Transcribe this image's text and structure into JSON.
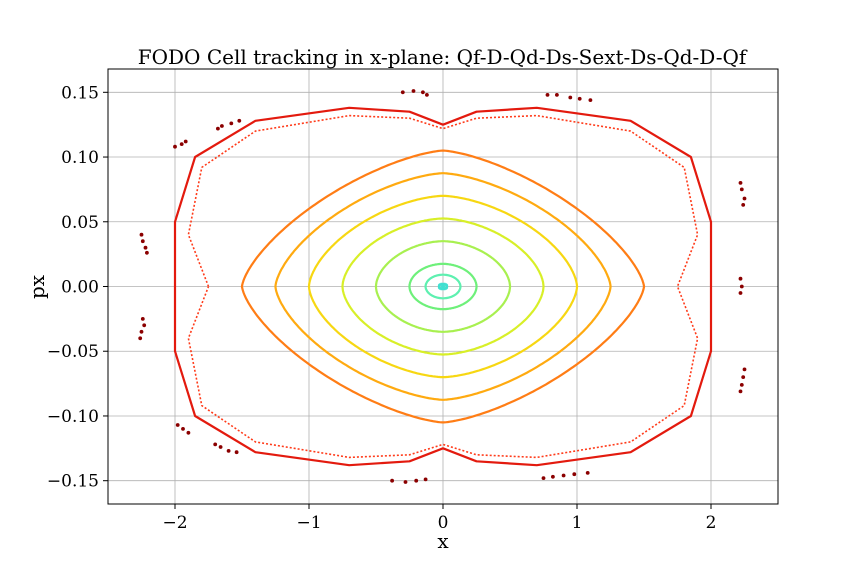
{
  "chart_data": {
    "type": "scatter",
    "title": "FODO Cell tracking in x-plane: Qf-D-Qd-Ds-Sext-Ds-Qd-D-Qf",
    "xlabel": "x",
    "ylabel": "px",
    "xlim": [
      -2.5,
      2.5
    ],
    "ylim": [
      -0.168,
      0.168
    ],
    "xticks": [
      -2,
      -1,
      0,
      1,
      2
    ],
    "xtick_labels": [
      "−2",
      "−1",
      "0",
      "1",
      "2"
    ],
    "yticks": [
      -0.15,
      -0.1,
      -0.05,
      0.0,
      0.05,
      0.1,
      0.15
    ],
    "ytick_labels": [
      "−0.15",
      "−0.10",
      "−0.05",
      "0.00",
      "0.05",
      "0.10",
      "0.15"
    ],
    "grid": true,
    "legend": "none",
    "orbits": [
      {
        "amplitude_x": 0.03,
        "color": "#40e0d0"
      },
      {
        "amplitude_x": 0.13,
        "color": "#5ef0b0"
      },
      {
        "amplitude_x": 0.25,
        "color": "#6ef07a"
      },
      {
        "amplitude_x": 0.5,
        "color": "#a8f050"
      },
      {
        "amplitude_x": 0.75,
        "color": "#d8ef28"
      },
      {
        "amplitude_x": 1.0,
        "color": "#f7d712"
      },
      {
        "amplitude_x": 1.25,
        "color": "#ffaa10"
      },
      {
        "amplitude_x": 1.5,
        "color": "#ff7d15"
      }
    ],
    "separatrix": {
      "color": "#e31a0e",
      "outer": [
        [
          -2.0,
          0.0
        ],
        [
          -2.0,
          0.05
        ],
        [
          -1.85,
          0.1
        ],
        [
          -1.4,
          0.128
        ],
        [
          -0.7,
          0.138
        ],
        [
          -0.25,
          0.135
        ],
        [
          0.0,
          0.125
        ],
        [
          0.25,
          0.135
        ],
        [
          0.7,
          0.138
        ],
        [
          1.4,
          0.128
        ],
        [
          1.85,
          0.1
        ],
        [
          2.0,
          0.05
        ],
        [
          2.0,
          0.0
        ],
        [
          2.0,
          -0.05
        ],
        [
          1.85,
          -0.1
        ],
        [
          1.4,
          -0.128
        ],
        [
          0.7,
          -0.138
        ],
        [
          0.25,
          -0.135
        ],
        [
          0.0,
          -0.125
        ],
        [
          -0.25,
          -0.135
        ],
        [
          -0.7,
          -0.138
        ],
        [
          -1.4,
          -0.128
        ],
        [
          -1.85,
          -0.1
        ],
        [
          -2.0,
          -0.05
        ]
      ],
      "inner": [
        [
          -1.75,
          0.0
        ],
        [
          -1.9,
          0.04
        ],
        [
          -1.8,
          0.092
        ],
        [
          -1.4,
          0.12
        ],
        [
          -0.7,
          0.132
        ],
        [
          -0.25,
          0.13
        ],
        [
          0.0,
          0.122
        ],
        [
          0.25,
          0.13
        ],
        [
          0.7,
          0.132
        ],
        [
          1.4,
          0.12
        ],
        [
          1.8,
          0.092
        ],
        [
          1.9,
          0.04
        ],
        [
          1.75,
          0.0
        ],
        [
          1.9,
          -0.04
        ],
        [
          1.8,
          -0.092
        ],
        [
          1.4,
          -0.12
        ],
        [
          0.7,
          -0.132
        ],
        [
          0.25,
          -0.13
        ],
        [
          0.0,
          -0.122
        ],
        [
          -0.25,
          -0.13
        ],
        [
          -0.7,
          -0.132
        ],
        [
          -1.4,
          -0.12
        ],
        [
          -1.8,
          -0.092
        ],
        [
          -1.9,
          -0.04
        ]
      ]
    },
    "islands": {
      "color": "#8b0000",
      "points": [
        [
          -0.3,
          0.15
        ],
        [
          -0.22,
          0.151
        ],
        [
          -0.15,
          0.15
        ],
        [
          -0.12,
          0.148
        ],
        [
          0.78,
          0.148
        ],
        [
          0.85,
          0.148
        ],
        [
          0.95,
          0.146
        ],
        [
          1.02,
          0.145
        ],
        [
          1.1,
          0.144
        ],
        [
          -1.68,
          0.122
        ],
        [
          -1.65,
          0.124
        ],
        [
          -1.58,
          0.126
        ],
        [
          -1.52,
          0.128
        ],
        [
          -2.0,
          0.108
        ],
        [
          -1.95,
          0.11
        ],
        [
          -1.92,
          0.112
        ],
        [
          -2.25,
          0.04
        ],
        [
          -2.24,
          0.035
        ],
        [
          -2.22,
          0.03
        ],
        [
          -2.21,
          0.026
        ],
        [
          -2.24,
          -0.025
        ],
        [
          -2.23,
          -0.03
        ],
        [
          -2.25,
          -0.035
        ],
        [
          -2.26,
          -0.04
        ],
        [
          -1.98,
          -0.107
        ],
        [
          -1.94,
          -0.11
        ],
        [
          -1.9,
          -0.113
        ],
        [
          -1.7,
          -0.122
        ],
        [
          -1.66,
          -0.124
        ],
        [
          -1.6,
          -0.127
        ],
        [
          -1.54,
          -0.128
        ],
        [
          -0.38,
          -0.15
        ],
        [
          -0.28,
          -0.151
        ],
        [
          -0.2,
          -0.15
        ],
        [
          -0.13,
          -0.149
        ],
        [
          0.75,
          -0.148
        ],
        [
          0.82,
          -0.147
        ],
        [
          0.9,
          -0.146
        ],
        [
          0.98,
          -0.145
        ],
        [
          1.08,
          -0.144
        ],
        [
          2.22,
          0.08
        ],
        [
          2.23,
          0.075
        ],
        [
          2.25,
          0.068
        ],
        [
          2.24,
          0.063
        ],
        [
          2.22,
          0.006
        ],
        [
          2.23,
          0.0
        ],
        [
          2.22,
          -0.005
        ],
        [
          2.25,
          -0.064
        ],
        [
          2.24,
          -0.07
        ],
        [
          2.23,
          -0.076
        ],
        [
          2.22,
          -0.081
        ]
      ]
    }
  }
}
